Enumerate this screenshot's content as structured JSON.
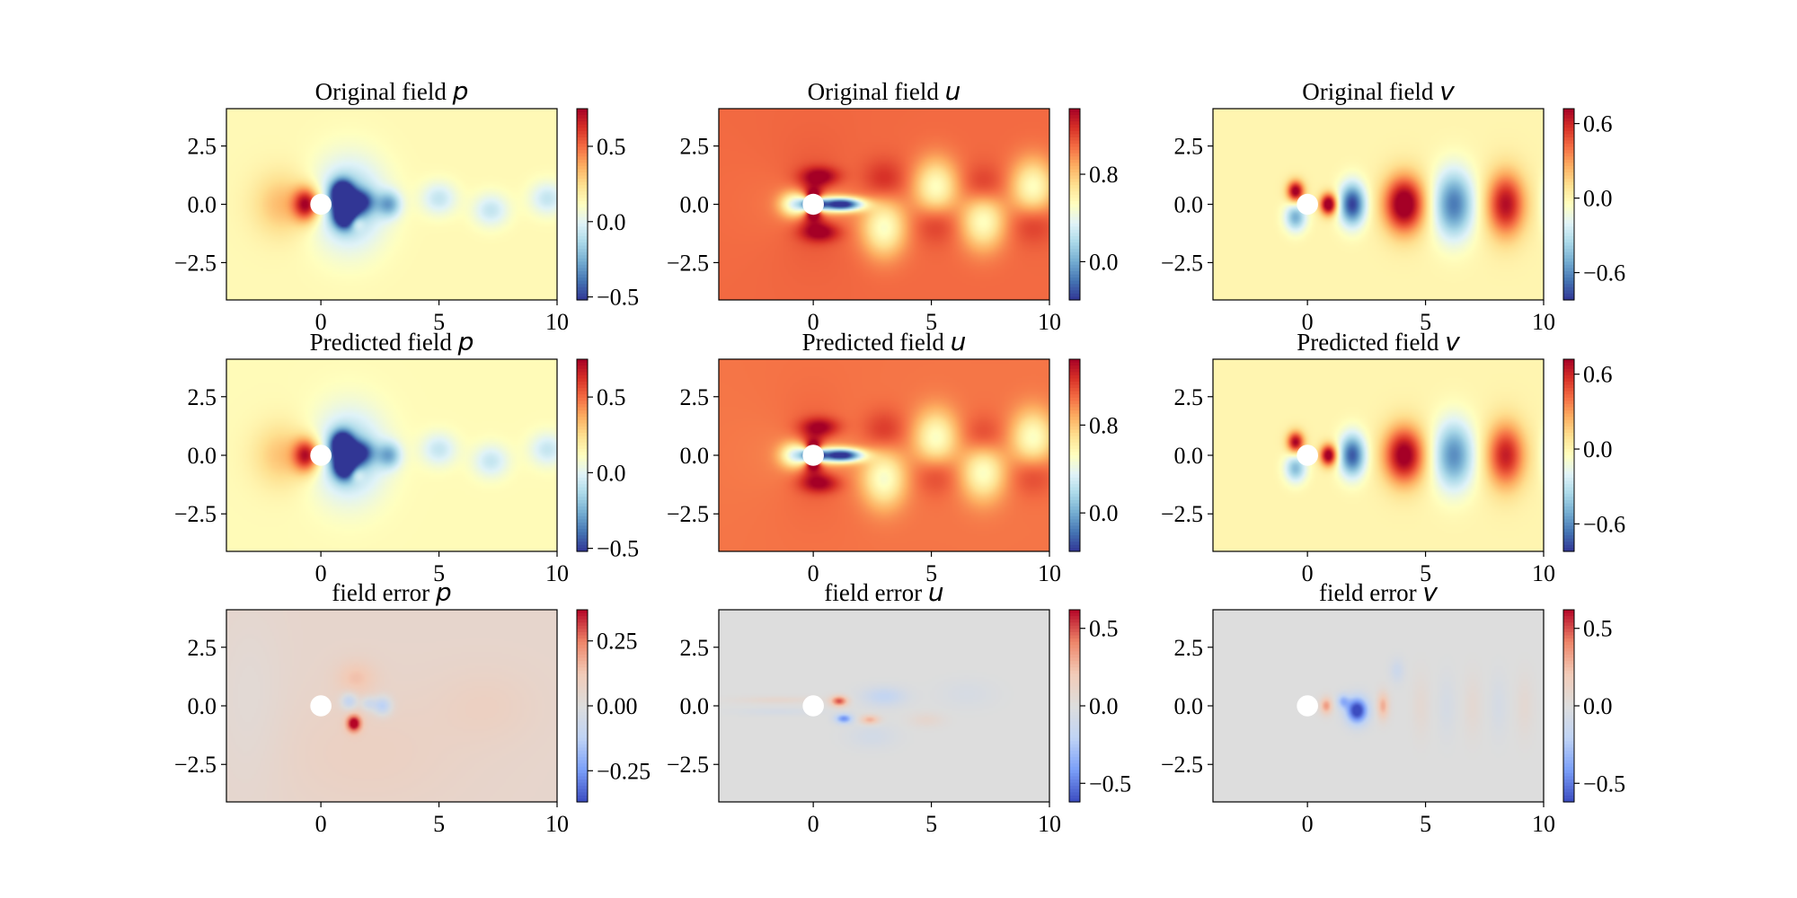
{
  "figure": {
    "layout": "3 rows x 3 columns of heatmaps with colorbars",
    "rows": 3,
    "cols": 3
  },
  "chart_data": [
    {
      "type": "heatmap",
      "title_prefix": "Original field",
      "variable": "p",
      "xlim": [
        -4,
        10
      ],
      "ylim": [
        -4.1,
        4.1
      ],
      "xticks": [
        {
          "v": 0,
          "label": "0"
        },
        {
          "v": 5,
          "label": "5"
        },
        {
          "v": 10,
          "label": "10"
        }
      ],
      "yticks": [
        {
          "v": 2.5,
          "label": "2.5"
        },
        {
          "v": 0,
          "label": "0.0"
        },
        {
          "v": -2.5,
          "label": "−2.5"
        }
      ],
      "colorbar": {
        "cmap": "RdYlBu_r",
        "min": -0.52,
        "max": 0.75,
        "ticks": [
          {
            "v": 0.5,
            "label": "0.5"
          },
          {
            "v": 0,
            "label": "0.0"
          },
          {
            "v": -0.5,
            "label": "−0.5"
          }
        ]
      },
      "field": "p",
      "amp": 1.0
    },
    {
      "type": "heatmap",
      "title_prefix": "Original field",
      "variable": "u",
      "xlim": [
        -4,
        10
      ],
      "ylim": [
        -4.1,
        4.1
      ],
      "xticks": [
        {
          "v": 0,
          "label": "0"
        },
        {
          "v": 5,
          "label": "5"
        },
        {
          "v": 10,
          "label": "10"
        }
      ],
      "yticks": [
        {
          "v": 2.5,
          "label": "2.5"
        },
        {
          "v": 0,
          "label": "0.0"
        },
        {
          "v": -2.5,
          "label": "−2.5"
        }
      ],
      "colorbar": {
        "cmap": "RdYlBu_r",
        "min": -0.35,
        "max": 1.4,
        "ticks": [
          {
            "v": 0.8,
            "label": "0.8"
          },
          {
            "v": 0,
            "label": "0.0"
          }
        ]
      },
      "field": "u",
      "amp": 1.0
    },
    {
      "type": "heatmap",
      "title_prefix": "Original field",
      "variable": "v",
      "xlim": [
        -4,
        10
      ],
      "ylim": [
        -4.1,
        4.1
      ],
      "xticks": [
        {
          "v": 0,
          "label": "0"
        },
        {
          "v": 5,
          "label": "5"
        },
        {
          "v": 10,
          "label": "10"
        }
      ],
      "yticks": [
        {
          "v": 2.5,
          "label": "2.5"
        },
        {
          "v": 0,
          "label": "0.0"
        },
        {
          "v": -2.5,
          "label": "−2.5"
        }
      ],
      "colorbar": {
        "cmap": "RdYlBu_r",
        "min": -0.82,
        "max": 0.72,
        "ticks": [
          {
            "v": 0.6,
            "label": "0.6"
          },
          {
            "v": 0,
            "label": "0.0"
          },
          {
            "v": -0.6,
            "label": "−0.6"
          }
        ]
      },
      "field": "v",
      "amp": 1.0
    },
    {
      "type": "heatmap",
      "title_prefix": "Predicted field",
      "variable": "p",
      "xlim": [
        -4,
        10
      ],
      "ylim": [
        -4.1,
        4.1
      ],
      "xticks": [
        {
          "v": 0,
          "label": "0"
        },
        {
          "v": 5,
          "label": "5"
        },
        {
          "v": 10,
          "label": "10"
        }
      ],
      "yticks": [
        {
          "v": 2.5,
          "label": "2.5"
        },
        {
          "v": 0,
          "label": "0.0"
        },
        {
          "v": -2.5,
          "label": "−2.5"
        }
      ],
      "colorbar": {
        "cmap": "RdYlBu_r",
        "min": -0.52,
        "max": 0.75,
        "ticks": [
          {
            "v": 0.5,
            "label": "0.5"
          },
          {
            "v": 0,
            "label": "0.0"
          },
          {
            "v": -0.5,
            "label": "−0.5"
          }
        ]
      },
      "field": "p",
      "amp": 0.95
    },
    {
      "type": "heatmap",
      "title_prefix": "Predicted field",
      "variable": "u",
      "xlim": [
        -4,
        10
      ],
      "ylim": [
        -4.1,
        4.1
      ],
      "xticks": [
        {
          "v": 0,
          "label": "0"
        },
        {
          "v": 5,
          "label": "5"
        },
        {
          "v": 10,
          "label": "10"
        }
      ],
      "yticks": [
        {
          "v": 2.5,
          "label": "2.5"
        },
        {
          "v": 0,
          "label": "0.0"
        },
        {
          "v": -2.5,
          "label": "−2.5"
        }
      ],
      "colorbar": {
        "cmap": "RdYlBu_r",
        "min": -0.35,
        "max": 1.4,
        "ticks": [
          {
            "v": 0.8,
            "label": "0.8"
          },
          {
            "v": 0,
            "label": "0.0"
          }
        ]
      },
      "field": "u",
      "amp": 0.97
    },
    {
      "type": "heatmap",
      "title_prefix": "Predicted field",
      "variable": "v",
      "xlim": [
        -4,
        10
      ],
      "ylim": [
        -4.1,
        4.1
      ],
      "xticks": [
        {
          "v": 0,
          "label": "0"
        },
        {
          "v": 5,
          "label": "5"
        },
        {
          "v": 10,
          "label": "10"
        }
      ],
      "yticks": [
        {
          "v": 2.5,
          "label": "2.5"
        },
        {
          "v": 0,
          "label": "0.0"
        },
        {
          "v": -2.5,
          "label": "−2.5"
        }
      ],
      "colorbar": {
        "cmap": "RdYlBu_r",
        "min": -0.82,
        "max": 0.72,
        "ticks": [
          {
            "v": 0.6,
            "label": "0.6"
          },
          {
            "v": 0,
            "label": "0.0"
          },
          {
            "v": -0.6,
            "label": "−0.6"
          }
        ]
      },
      "field": "v",
      "amp": 0.92
    },
    {
      "type": "heatmap",
      "title_prefix": "field error",
      "variable": "p",
      "xlim": [
        -4,
        10
      ],
      "ylim": [
        -4.1,
        4.1
      ],
      "xticks": [
        {
          "v": 0,
          "label": "0"
        },
        {
          "v": 5,
          "label": "5"
        },
        {
          "v": 10,
          "label": "10"
        }
      ],
      "yticks": [
        {
          "v": 2.5,
          "label": "2.5"
        },
        {
          "v": 0,
          "label": "0.0"
        },
        {
          "v": -2.5,
          "label": "−2.5"
        }
      ],
      "colorbar": {
        "cmap": "coolwarm",
        "min": -0.37,
        "max": 0.37,
        "ticks": [
          {
            "v": 0.25,
            "label": "0.25"
          },
          {
            "v": 0,
            "label": "0.00"
          },
          {
            "v": -0.25,
            "label": "−0.25"
          }
        ]
      },
      "field": "ep",
      "amp": 1.0
    },
    {
      "type": "heatmap",
      "title_prefix": "field error",
      "variable": "u",
      "xlim": [
        -4,
        10
      ],
      "ylim": [
        -4.1,
        4.1
      ],
      "xticks": [
        {
          "v": 0,
          "label": "0"
        },
        {
          "v": 5,
          "label": "5"
        },
        {
          "v": 10,
          "label": "10"
        }
      ],
      "yticks": [
        {
          "v": 2.5,
          "label": "2.5"
        },
        {
          "v": 0,
          "label": "0.0"
        },
        {
          "v": -2.5,
          "label": "−2.5"
        }
      ],
      "colorbar": {
        "cmap": "coolwarm",
        "min": -0.62,
        "max": 0.62,
        "ticks": [
          {
            "v": 0.5,
            "label": "0.5"
          },
          {
            "v": 0,
            "label": "0.0"
          },
          {
            "v": -0.5,
            "label": "−0.5"
          }
        ]
      },
      "field": "eu",
      "amp": 1.0
    },
    {
      "type": "heatmap",
      "title_prefix": "field error",
      "variable": "v",
      "xlim": [
        -4,
        10
      ],
      "ylim": [
        -4.1,
        4.1
      ],
      "xticks": [
        {
          "v": 0,
          "label": "0"
        },
        {
          "v": 5,
          "label": "5"
        },
        {
          "v": 10,
          "label": "10"
        }
      ],
      "yticks": [
        {
          "v": 2.5,
          "label": "2.5"
        },
        {
          "v": 0,
          "label": "0.0"
        },
        {
          "v": -2.5,
          "label": "−2.5"
        }
      ],
      "colorbar": {
        "cmap": "coolwarm",
        "min": -0.62,
        "max": 0.62,
        "ticks": [
          {
            "v": 0.5,
            "label": "0.5"
          },
          {
            "v": 0,
            "label": "0.0"
          },
          {
            "v": -0.5,
            "label": "−0.5"
          }
        ]
      },
      "field": "ev",
      "amp": 1.0
    }
  ],
  "cylinder": {
    "x": 0,
    "y": 0,
    "r": 0.45,
    "color": "#ffffff"
  },
  "colormaps": {
    "RdYlBu_r": [
      "#313695",
      "#4575b4",
      "#74add1",
      "#abd9e9",
      "#e0f3f8",
      "#ffffbf",
      "#fee090",
      "#fdae61",
      "#f46d43",
      "#d73027",
      "#a50026"
    ],
    "coolwarm": [
      "#3b4cc0",
      "#7b9ff9",
      "#c0d4f5",
      "#dddddd",
      "#f2cbb7",
      "#ee8468",
      "#b40426"
    ]
  }
}
